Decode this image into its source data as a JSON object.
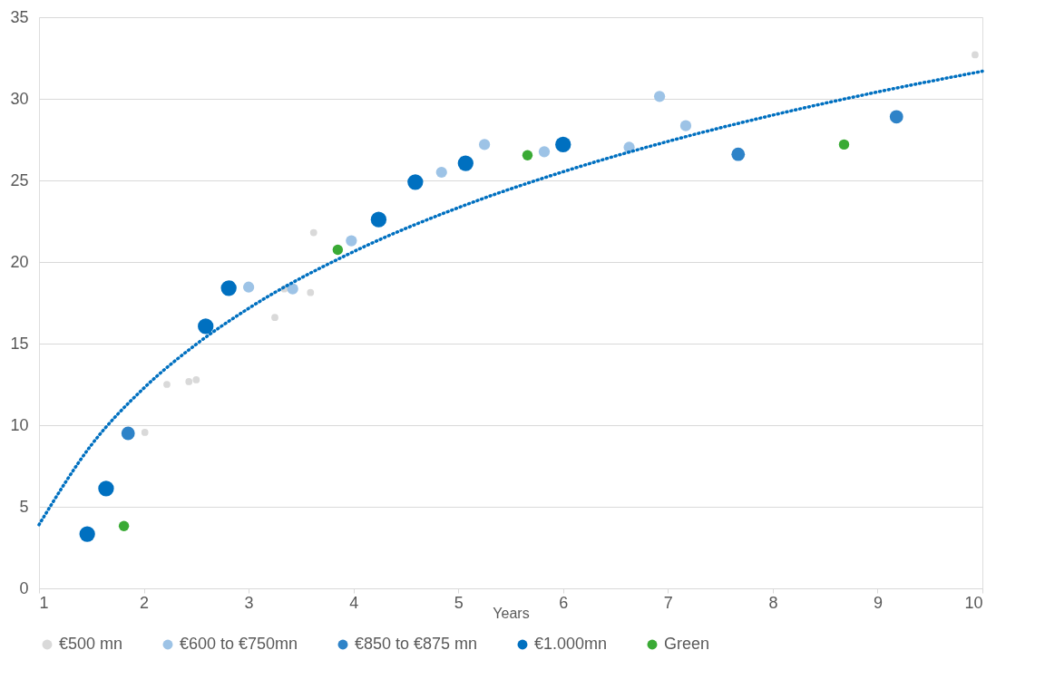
{
  "chart_data": {
    "type": "scatter",
    "xlabel": "Years",
    "xlim": [
      1,
      10
    ],
    "ylim": [
      0,
      35
    ],
    "xticks": [
      1,
      2,
      3,
      4,
      5,
      6,
      7,
      8,
      9,
      10
    ],
    "yticks": [
      0,
      5,
      10,
      15,
      20,
      25,
      30,
      35
    ],
    "grid": "y",
    "legend": "bottom",
    "marker": "circle",
    "series": [
      {
        "name": "€500 mn",
        "color": "#d9d9d9",
        "x": [
          2.01,
          2.22,
          2.43,
          2.5,
          3.25,
          3.34,
          3.59,
          3.62,
          9.93
        ],
        "values": [
          9.56,
          12.5,
          12.67,
          12.78,
          16.6,
          18.35,
          18.13,
          21.8,
          32.7
        ]
      },
      {
        "name": "€600 to €750mn",
        "color": "#9dc3e6",
        "x": [
          3.0,
          3.42,
          3.98,
          4.84,
          5.25,
          5.82,
          6.63,
          6.92,
          7.17
        ],
        "values": [
          18.46,
          18.35,
          21.3,
          25.5,
          27.2,
          26.76,
          27.03,
          30.15,
          28.35
        ]
      },
      {
        "name": "€850 to €875 mn",
        "color": "#2e83c8",
        "x": [
          1.85,
          7.67,
          9.18
        ],
        "values": [
          9.5,
          26.6,
          28.9
        ]
      },
      {
        "name": "€1.000mn",
        "color": "#0070c0",
        "x": [
          1.46,
          1.64,
          2.59,
          2.81,
          4.24,
          4.59,
          5.07,
          6.0
        ],
        "values": [
          3.33,
          6.12,
          16.06,
          18.4,
          22.6,
          24.9,
          26.05,
          27.2
        ]
      },
      {
        "name": "Green",
        "color": "#3aaa35",
        "x": [
          1.81,
          3.85,
          5.66,
          8.68
        ],
        "values": [
          3.82,
          20.75,
          26.54,
          27.2
        ]
      },
      {
        "type": "line",
        "color": "#0070c0",
        "line_style": "dotted",
        "marker": "none",
        "x": [
          1,
          1.5,
          2,
          2.5,
          3,
          4,
          5,
          6,
          7,
          8,
          9,
          10
        ],
        "values": [
          3.9,
          8.79,
          12.27,
          14.96,
          17.16,
          20.63,
          23.33,
          25.53,
          27.39,
          29.0,
          30.42,
          31.69
        ]
      }
    ]
  }
}
